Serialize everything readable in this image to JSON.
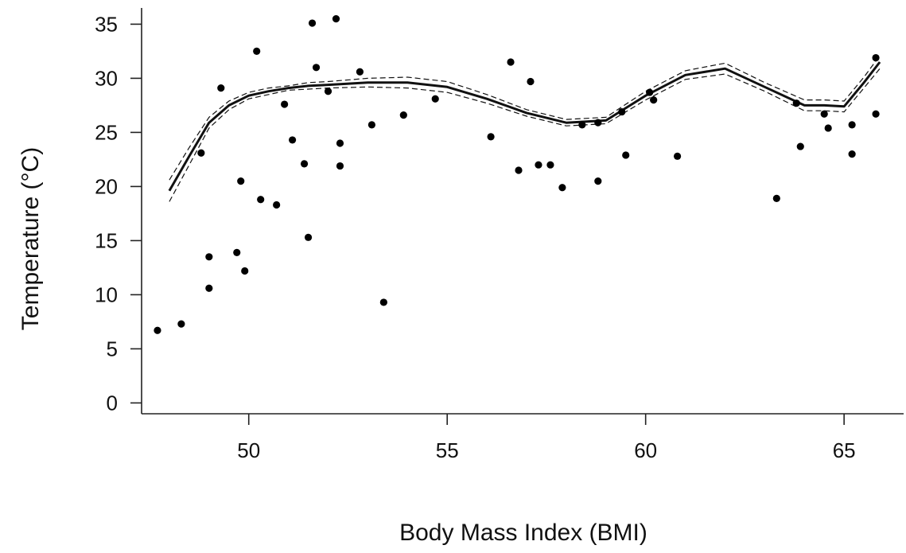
{
  "chart_data": {
    "type": "scatter",
    "xlabel": "Body Mass Index (BMI)",
    "ylabel": "Temperature (°C)",
    "xlim": [
      47.3,
      66.5
    ],
    "ylim": [
      -1,
      36.5
    ],
    "xticks": [
      50,
      55,
      60,
      65
    ],
    "yticks": [
      0,
      5,
      10,
      15,
      20,
      25,
      30,
      35
    ],
    "grid": false,
    "legend": "none",
    "points": [
      {
        "x": 47.7,
        "y": 6.7
      },
      {
        "x": 48.3,
        "y": 7.3
      },
      {
        "x": 48.8,
        "y": 23.1
      },
      {
        "x": 49.0,
        "y": 10.6
      },
      {
        "x": 49.0,
        "y": 13.5
      },
      {
        "x": 49.3,
        "y": 29.1
      },
      {
        "x": 49.7,
        "y": 13.9
      },
      {
        "x": 49.8,
        "y": 20.5
      },
      {
        "x": 49.9,
        "y": 12.2
      },
      {
        "x": 50.2,
        "y": 32.5
      },
      {
        "x": 50.3,
        "y": 18.8
      },
      {
        "x": 50.7,
        "y": 18.3
      },
      {
        "x": 50.9,
        "y": 27.6
      },
      {
        "x": 51.1,
        "y": 24.3
      },
      {
        "x": 51.4,
        "y": 22.1
      },
      {
        "x": 51.5,
        "y": 15.3
      },
      {
        "x": 51.6,
        "y": 35.1
      },
      {
        "x": 51.7,
        "y": 31.0
      },
      {
        "x": 52.0,
        "y": 28.8
      },
      {
        "x": 52.2,
        "y": 35.5
      },
      {
        "x": 52.3,
        "y": 21.9
      },
      {
        "x": 52.3,
        "y": 24.0
      },
      {
        "x": 52.8,
        "y": 30.6
      },
      {
        "x": 53.1,
        "y": 25.7
      },
      {
        "x": 53.4,
        "y": 9.3
      },
      {
        "x": 53.9,
        "y": 26.6
      },
      {
        "x": 54.7,
        "y": 28.1
      },
      {
        "x": 56.1,
        "y": 24.6
      },
      {
        "x": 56.6,
        "y": 31.5
      },
      {
        "x": 56.8,
        "y": 21.5
      },
      {
        "x": 57.1,
        "y": 29.7
      },
      {
        "x": 57.3,
        "y": 22.0
      },
      {
        "x": 57.6,
        "y": 22.0
      },
      {
        "x": 57.9,
        "y": 19.9
      },
      {
        "x": 58.4,
        "y": 25.7
      },
      {
        "x": 58.8,
        "y": 20.5
      },
      {
        "x": 58.8,
        "y": 25.9
      },
      {
        "x": 59.4,
        "y": 26.9
      },
      {
        "x": 59.5,
        "y": 22.9
      },
      {
        "x": 60.1,
        "y": 28.7
      },
      {
        "x": 60.2,
        "y": 28.0
      },
      {
        "x": 60.8,
        "y": 22.8
      },
      {
        "x": 63.3,
        "y": 18.9
      },
      {
        "x": 63.8,
        "y": 27.7
      },
      {
        "x": 63.9,
        "y": 23.7
      },
      {
        "x": 64.5,
        "y": 26.7
      },
      {
        "x": 64.6,
        "y": 25.4
      },
      {
        "x": 65.2,
        "y": 23.0
      },
      {
        "x": 65.2,
        "y": 25.7
      },
      {
        "x": 65.8,
        "y": 26.7
      },
      {
        "x": 65.8,
        "y": 31.9
      }
    ],
    "fit": {
      "x": [
        48.0,
        48.5,
        49.0,
        49.5,
        50.0,
        50.5,
        51.0,
        51.5,
        52.0,
        53.0,
        54.0,
        55.0,
        56.0,
        57.0,
        58.0,
        59.0,
        60.0,
        61.0,
        62.0,
        63.0,
        64.0,
        64.5,
        65.0,
        65.5,
        65.9
      ],
      "y": [
        19.6,
        22.8,
        25.9,
        27.5,
        28.4,
        28.8,
        29.1,
        29.3,
        29.4,
        29.6,
        29.6,
        29.2,
        28.1,
        26.8,
        25.9,
        26.1,
        28.4,
        30.3,
        30.9,
        29.2,
        27.5,
        27.5,
        27.4,
        29.6,
        31.5
      ],
      "ci_upper": [
        20.6,
        23.6,
        26.4,
        27.9,
        28.7,
        29.1,
        29.3,
        29.6,
        29.7,
        30.0,
        30.1,
        29.7,
        28.5,
        27.1,
        26.2,
        26.4,
        28.8,
        30.7,
        31.4,
        29.6,
        28.0,
        28.0,
        27.9,
        30.1,
        32.1
      ],
      "ci_lower": [
        18.6,
        22.0,
        25.4,
        27.1,
        28.1,
        28.5,
        28.9,
        29.0,
        29.1,
        29.2,
        29.1,
        28.7,
        27.7,
        26.5,
        25.6,
        25.8,
        28.0,
        29.9,
        30.4,
        28.8,
        27.0,
        27.0,
        26.9,
        29.1,
        30.9
      ]
    }
  }
}
